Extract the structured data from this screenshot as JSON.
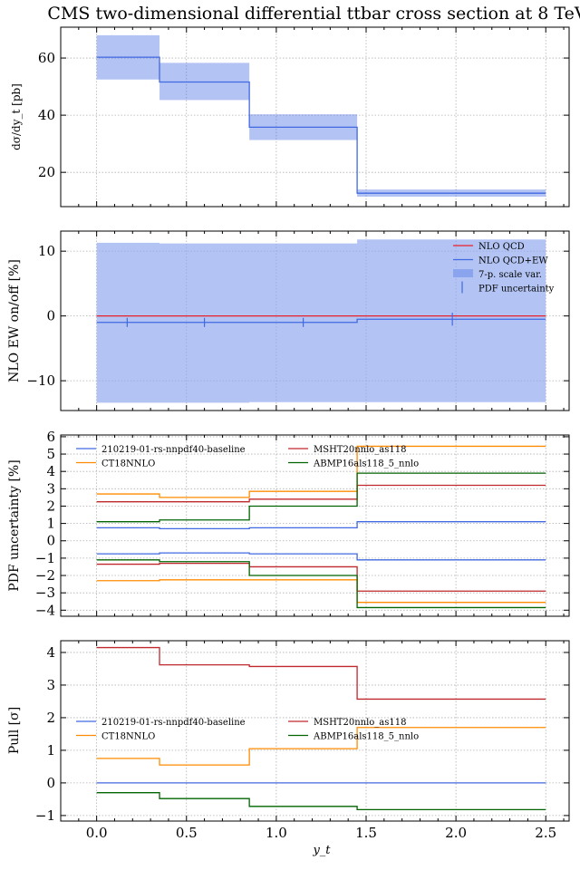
{
  "chart_data": [
    {
      "type": "line",
      "title": "CMS two-dimensional differential ttbar cross section at 8 TeV",
      "ylabel": "dσ/dy_t [pb]",
      "bin_edges": [
        0,
        0.35,
        0.85,
        1.45,
        2.5
      ],
      "xlim": [
        -0.2,
        2.63
      ],
      "ylim": [
        8,
        70.8
      ],
      "yticks": [
        "20",
        "40",
        "60"
      ],
      "grid": true,
      "series": [
        {
          "values": [
            60.3,
            51.6,
            35.8,
            12.7
          ],
          "band_low": [
            52.5,
            45.3,
            31.3,
            11.5
          ],
          "band_high": [
            68.0,
            58.3,
            40.3,
            14.0
          ],
          "color": "#4169e1"
        }
      ]
    },
    {
      "type": "line",
      "ylabel": "NLO EW on/off [%]",
      "bin_edges": [
        0,
        0.35,
        0.85,
        1.45,
        2.5
      ],
      "xlim": [
        -0.2,
        2.63
      ],
      "ylim": [
        -14.6,
        13.1
      ],
      "yticks": [
        "−10",
        "0",
        "10"
      ],
      "grid": true,
      "legend_position": "top-right",
      "series": [
        {
          "name": "NLO QCD",
          "values": [
            0,
            0,
            0,
            0
          ],
          "color": "#e8202a"
        },
        {
          "name": "NLO QCD+EW",
          "values": [
            -1.0,
            -1.0,
            -1.0,
            -0.5
          ],
          "color": "#4169e1"
        },
        {
          "name": "7-p. scale var.",
          "band_low": [
            -13.4,
            -13.4,
            -13.3,
            -13.3
          ],
          "band_high": [
            11.3,
            11.2,
            11.2,
            11.8
          ],
          "color": "#8aa4ee"
        },
        {
          "name": "PDF uncertainty",
          "x": [
            0.17,
            0.6,
            1.15,
            1.98
          ],
          "values": [
            -1.0,
            -1.0,
            -1.0,
            -0.5
          ],
          "err": [
            0.7,
            0.7,
            0.7,
            1.0
          ],
          "color": "#4169e1"
        }
      ]
    },
    {
      "type": "line",
      "ylabel": "PDF uncertainty [%]",
      "bin_edges": [
        0,
        0.35,
        0.85,
        1.45,
        2.5
      ],
      "xlim": [
        -0.2,
        2.63
      ],
      "ylim": [
        -4.35,
        6.1
      ],
      "yticks": [
        "−4",
        "−3",
        "−2",
        "−1",
        "0",
        "1",
        "2",
        "3",
        "4",
        "5",
        "6"
      ],
      "grid": true,
      "legend_position": "top-left",
      "series": [
        {
          "name": "210219-01-rs-nnpdf40-baseline",
          "up": [
            0.75,
            0.7,
            0.75,
            1.1
          ],
          "down": [
            -0.75,
            -0.7,
            -0.75,
            -1.1
          ],
          "color": "#4169e1"
        },
        {
          "name": "MSHT20nnlo_as118",
          "up": [
            2.25,
            2.25,
            2.4,
            3.2
          ],
          "down": [
            -1.35,
            -1.3,
            -1.5,
            -2.9
          ],
          "color": "#c0282d"
        },
        {
          "name": "CT18NNLO",
          "up": [
            2.7,
            2.5,
            2.85,
            5.45
          ],
          "down": [
            -2.3,
            -2.25,
            -2.25,
            -3.55
          ],
          "color": "#ff8c00"
        },
        {
          "name": "ABMP16als118_5_nnlo",
          "up": [
            1.1,
            1.2,
            2.0,
            3.9
          ],
          "down": [
            -1.1,
            -1.2,
            -2.0,
            -3.85
          ],
          "color": "#006400"
        }
      ]
    },
    {
      "type": "line",
      "ylabel": "Pull [σ]",
      "xlabel": "y_t",
      "bin_edges": [
        0,
        0.35,
        0.85,
        1.45,
        2.5
      ],
      "xlim": [
        -0.2,
        2.63
      ],
      "ylim": [
        -1.17,
        4.36
      ],
      "xticks": [
        "0.0",
        "0.5",
        "1.0",
        "1.5",
        "2.0",
        "2.5"
      ],
      "yticks": [
        "−1",
        "0",
        "1",
        "2",
        "3",
        "4"
      ],
      "grid": true,
      "legend_position": "center-left",
      "series": [
        {
          "name": "210219-01-rs-nnpdf40-baseline",
          "values": [
            0,
            0,
            0,
            0
          ],
          "color": "#4169e1"
        },
        {
          "name": "MSHT20nnlo_as118",
          "values": [
            4.15,
            3.62,
            3.57,
            2.57
          ],
          "color": "#c0282d"
        },
        {
          "name": "CT18NNLO",
          "values": [
            0.75,
            0.55,
            1.05,
            1.7
          ],
          "color": "#ff8c00"
        },
        {
          "name": "ABMP16als118_5_nnlo",
          "values": [
            -0.3,
            -0.48,
            -0.72,
            -0.82
          ],
          "color": "#006400"
        }
      ]
    }
  ]
}
